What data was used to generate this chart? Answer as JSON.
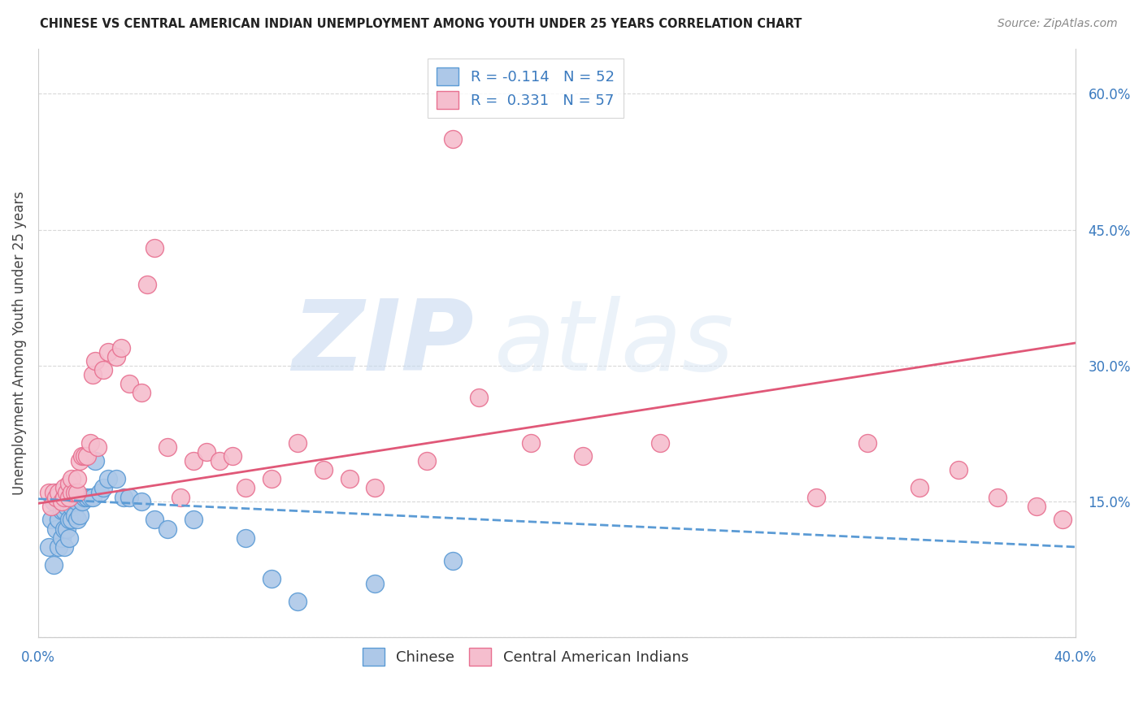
{
  "title": "CHINESE VS CENTRAL AMERICAN INDIAN UNEMPLOYMENT AMONG YOUTH UNDER 25 YEARS CORRELATION CHART",
  "source": "Source: ZipAtlas.com",
  "ylabel": "Unemployment Among Youth under 25 years",
  "xlim": [
    0.0,
    0.4
  ],
  "ylim": [
    0.0,
    0.65
  ],
  "xticks": [
    0.0,
    0.08,
    0.16,
    0.24,
    0.32,
    0.4
  ],
  "xtick_labels": [
    "0.0%",
    "",
    "",
    "",
    "",
    "40.0%"
  ],
  "ytick_labels_right": [
    "",
    "15.0%",
    "30.0%",
    "45.0%",
    "60.0%"
  ],
  "yticks_right": [
    0.0,
    0.15,
    0.3,
    0.45,
    0.6
  ],
  "chinese_color": "#adc8e8",
  "chinese_edge_color": "#5b9bd5",
  "ca_indian_color": "#f5bece",
  "ca_indian_edge_color": "#e87090",
  "trend_chinese_color": "#5b9bd5",
  "trend_ca_indian_color": "#e05878",
  "R_chinese": -0.114,
  "N_chinese": 52,
  "R_ca_indian": 0.331,
  "N_ca_indian": 57,
  "watermark_zip": "ZIP",
  "watermark_atlas": "atlas",
  "background_color": "#ffffff",
  "grid_color": "#d8d8d8",
  "chinese_x": [
    0.004,
    0.005,
    0.006,
    0.006,
    0.007,
    0.007,
    0.008,
    0.008,
    0.008,
    0.009,
    0.009,
    0.009,
    0.01,
    0.01,
    0.01,
    0.01,
    0.011,
    0.011,
    0.011,
    0.012,
    0.012,
    0.012,
    0.013,
    0.013,
    0.013,
    0.014,
    0.014,
    0.015,
    0.015,
    0.016,
    0.016,
    0.017,
    0.018,
    0.019,
    0.02,
    0.021,
    0.022,
    0.024,
    0.025,
    0.027,
    0.03,
    0.033,
    0.035,
    0.04,
    0.045,
    0.05,
    0.06,
    0.08,
    0.09,
    0.1,
    0.13,
    0.16
  ],
  "chinese_y": [
    0.1,
    0.13,
    0.08,
    0.15,
    0.12,
    0.16,
    0.1,
    0.13,
    0.155,
    0.11,
    0.14,
    0.16,
    0.1,
    0.12,
    0.14,
    0.16,
    0.12,
    0.145,
    0.16,
    0.11,
    0.13,
    0.155,
    0.13,
    0.145,
    0.16,
    0.135,
    0.155,
    0.13,
    0.15,
    0.135,
    0.155,
    0.15,
    0.155,
    0.155,
    0.155,
    0.155,
    0.195,
    0.16,
    0.165,
    0.175,
    0.175,
    0.155,
    0.155,
    0.15,
    0.13,
    0.12,
    0.13,
    0.11,
    0.065,
    0.04,
    0.06,
    0.085
  ],
  "ca_x": [
    0.004,
    0.005,
    0.006,
    0.007,
    0.008,
    0.009,
    0.01,
    0.01,
    0.011,
    0.012,
    0.012,
    0.013,
    0.013,
    0.014,
    0.015,
    0.015,
    0.016,
    0.017,
    0.018,
    0.019,
    0.02,
    0.021,
    0.022,
    0.023,
    0.025,
    0.027,
    0.03,
    0.032,
    0.035,
    0.04,
    0.042,
    0.045,
    0.05,
    0.055,
    0.06,
    0.065,
    0.07,
    0.075,
    0.08,
    0.09,
    0.1,
    0.11,
    0.12,
    0.13,
    0.15,
    0.16,
    0.17,
    0.19,
    0.21,
    0.24,
    0.3,
    0.32,
    0.34,
    0.355,
    0.37,
    0.385,
    0.395
  ],
  "ca_y": [
    0.16,
    0.145,
    0.16,
    0.155,
    0.16,
    0.15,
    0.155,
    0.165,
    0.16,
    0.155,
    0.17,
    0.16,
    0.175,
    0.16,
    0.16,
    0.175,
    0.195,
    0.2,
    0.2,
    0.2,
    0.215,
    0.29,
    0.305,
    0.21,
    0.295,
    0.315,
    0.31,
    0.32,
    0.28,
    0.27,
    0.39,
    0.43,
    0.21,
    0.155,
    0.195,
    0.205,
    0.195,
    0.2,
    0.165,
    0.175,
    0.215,
    0.185,
    0.175,
    0.165,
    0.195,
    0.55,
    0.265,
    0.215,
    0.2,
    0.215,
    0.155,
    0.215,
    0.165,
    0.185,
    0.155,
    0.145,
    0.13
  ],
  "trend_chinese_start_y": 0.153,
  "trend_chinese_end_y": 0.1,
  "trend_ca_start_y": 0.148,
  "trend_ca_end_y": 0.325
}
